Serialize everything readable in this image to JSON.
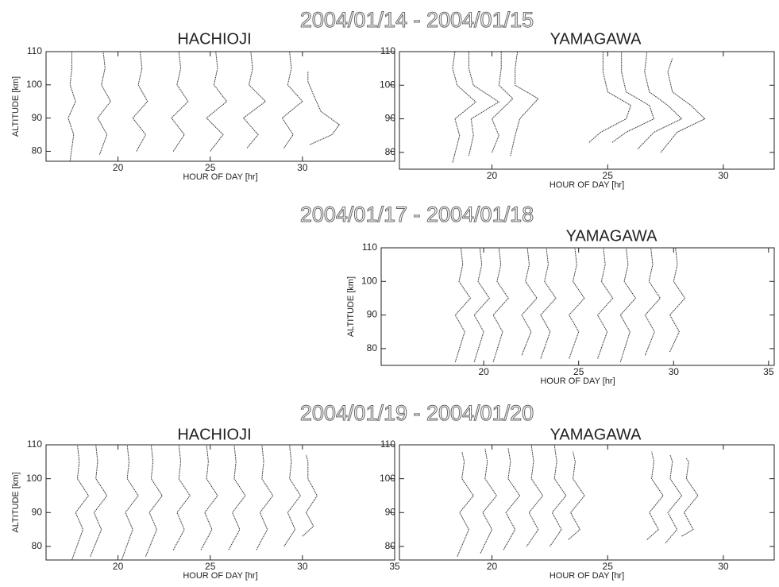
{
  "figure_titles": [
    "2004/01/14 - 2004/01/15",
    "2004/01/17 - 2004/01/18",
    "2004/01/19 - 2004/01/20"
  ],
  "chart_data": [
    {
      "type": "line",
      "title": "HACHIOJI",
      "xlabel": "HOUR OF DAY [hr]",
      "ylabel": "ALTITUDE [km]",
      "xlim": [
        16.1,
        35
      ],
      "ylim": [
        77,
        110
      ],
      "xticks": [
        20,
        25,
        30
      ],
      "yticks": [
        80,
        90,
        100,
        110
      ],
      "color": "#333333",
      "series": [
        {
          "x": [
            17.4,
            17.6,
            17.3,
            17.7,
            17.4,
            17.5,
            17.5
          ],
          "values": [
            77,
            85,
            90,
            95,
            100,
            105,
            110
          ]
        },
        {
          "x": [
            19.0,
            19.4,
            18.9,
            19.6,
            19.1,
            19.3,
            19.2
          ],
          "values": [
            79,
            85,
            90,
            95,
            100,
            105,
            110
          ]
        },
        {
          "x": [
            21.0,
            21.5,
            20.8,
            21.6,
            21.1,
            21.3,
            21.2
          ],
          "values": [
            80,
            85,
            90,
            95,
            100,
            105,
            110
          ]
        },
        {
          "x": [
            23.0,
            23.6,
            22.9,
            23.8,
            23.2,
            23.4,
            23.3
          ],
          "values": [
            80,
            85,
            90,
            95,
            100,
            105,
            110
          ]
        },
        {
          "x": [
            25.0,
            25.7,
            24.8,
            25.9,
            25.2,
            25.4,
            25.3
          ],
          "values": [
            80,
            85,
            90,
            95,
            100,
            105,
            110
          ]
        },
        {
          "x": [
            27.0,
            27.6,
            26.8,
            28.0,
            27.1,
            27.3,
            27.2
          ],
          "values": [
            81,
            85,
            90,
            95,
            100,
            105,
            110
          ]
        },
        {
          "x": [
            29.0,
            29.5,
            28.9,
            30.0,
            29.2,
            29.4,
            29.3
          ],
          "values": [
            81,
            85,
            90,
            95,
            100,
            105,
            110
          ]
        },
        {
          "x": [
            30.4,
            31.6,
            32.0,
            31.0,
            30.6,
            30.3,
            30.3
          ],
          "values": [
            82,
            85,
            88,
            92,
            97,
            101,
            104
          ]
        }
      ]
    },
    {
      "type": "line",
      "title": "YAMAGAWA",
      "xlabel": "HOUR OF DAY [hr]",
      "xlim": [
        16,
        32.2
      ],
      "ylim": [
        75,
        110
      ],
      "xticks": [
        20,
        25,
        30
      ],
      "yticks": [
        80,
        90,
        100,
        110
      ],
      "color": "#333333",
      "series": [
        {
          "x": [
            18.3,
            18.6,
            18.4,
            19.3,
            18.5,
            18.3,
            18.4
          ],
          "values": [
            77,
            85,
            90,
            95,
            100,
            105,
            110
          ]
        },
        {
          "x": [
            19.0,
            19.2,
            19.1,
            20.3,
            19.2,
            19.0,
            19.0
          ],
          "values": [
            79,
            85,
            90,
            95,
            100,
            105,
            110
          ]
        },
        {
          "x": [
            20.0,
            20.3,
            20.0,
            20.9,
            20.3,
            20.4,
            20.4
          ],
          "values": [
            80,
            85,
            90,
            96,
            100,
            105,
            110
          ]
        },
        {
          "x": [
            20.8,
            21.0,
            21.2,
            22.0,
            21.0,
            21.0,
            21.1
          ],
          "values": [
            79,
            85,
            90,
            96,
            100,
            105,
            110
          ]
        },
        {
          "x": [
            24.2,
            24.7,
            25.8,
            26.0,
            25.0,
            24.8,
            24.8
          ],
          "values": [
            83,
            86,
            90,
            94,
            98,
            104,
            110
          ]
        },
        {
          "x": [
            25.2,
            25.8,
            27.0,
            26.8,
            25.8,
            25.6,
            25.6
          ],
          "values": [
            83,
            86,
            90,
            94,
            98,
            104,
            110
          ]
        },
        {
          "x": [
            26.3,
            27.0,
            28.2,
            27.6,
            26.8,
            26.6,
            26.7
          ],
          "values": [
            81,
            86,
            90,
            94,
            98,
            104,
            110
          ]
        },
        {
          "x": [
            27.3,
            28.0,
            29.2,
            28.6,
            27.8,
            27.6,
            27.8
          ],
          "values": [
            80,
            86,
            90,
            94,
            98,
            104,
            108
          ]
        }
      ]
    },
    {
      "type": "line",
      "title": "YAMAGAWA",
      "xlabel": "HOUR OF DAY [hr]",
      "ylabel": "ALTITUDE [km]",
      "xlim": [
        14.6,
        35.3
      ],
      "ylim": [
        75,
        110
      ],
      "xticks": [
        20,
        25,
        30,
        35
      ],
      "yticks": [
        80,
        90,
        100,
        110
      ],
      "color": "#333333",
      "series": [
        {
          "x": [
            18.5,
            19.0,
            18.5,
            19.3,
            18.7,
            18.9,
            18.8
          ],
          "values": [
            76,
            85,
            90,
            95,
            100,
            105,
            110
          ]
        },
        {
          "x": [
            19.5,
            20.0,
            19.5,
            20.3,
            19.7,
            19.9,
            19.8
          ],
          "values": [
            76,
            85,
            90,
            95,
            100,
            105,
            110
          ]
        },
        {
          "x": [
            20.5,
            21.0,
            20.5,
            21.3,
            20.7,
            20.9,
            20.8
          ],
          "values": [
            76,
            85,
            90,
            95,
            100,
            105,
            110
          ]
        },
        {
          "x": [
            22.0,
            22.5,
            22.0,
            22.8,
            22.2,
            22.4,
            22.3
          ],
          "values": [
            78,
            85,
            90,
            95,
            100,
            105,
            110
          ]
        },
        {
          "x": [
            23.0,
            23.5,
            23.0,
            23.8,
            23.2,
            23.4,
            23.3
          ],
          "values": [
            77,
            85,
            90,
            95,
            100,
            105,
            110
          ]
        },
        {
          "x": [
            24.5,
            25.0,
            24.5,
            25.3,
            24.7,
            24.9,
            24.8
          ],
          "values": [
            77,
            85,
            90,
            95,
            100,
            105,
            110
          ]
        },
        {
          "x": [
            26.0,
            26.5,
            26.0,
            26.8,
            26.2,
            26.4,
            26.3
          ],
          "values": [
            77,
            85,
            90,
            95,
            100,
            105,
            110
          ]
        },
        {
          "x": [
            27.2,
            27.7,
            27.2,
            28.0,
            27.4,
            27.6,
            27.5
          ],
          "values": [
            76,
            85,
            90,
            95,
            100,
            105,
            110
          ]
        },
        {
          "x": [
            28.5,
            29.0,
            28.5,
            29.3,
            28.7,
            28.9,
            28.8
          ],
          "values": [
            78,
            85,
            90,
            95,
            100,
            105,
            110
          ]
        },
        {
          "x": [
            29.8,
            30.3,
            29.8,
            30.6,
            30.0,
            30.2,
            30.1
          ],
          "values": [
            79,
            85,
            90,
            95,
            100,
            105,
            110
          ]
        }
      ]
    },
    {
      "type": "line",
      "title": "HACHIOJI",
      "xlabel": "HOUR OF DAY [hr]",
      "ylabel": "ALTITUDE [km]",
      "xlim": [
        16.1,
        35
      ],
      "ylim": [
        76,
        110
      ],
      "xticks": [
        20,
        25,
        30,
        35
      ],
      "yticks": [
        80,
        90,
        100,
        110
      ],
      "color": "#333333",
      "series": [
        {
          "x": [
            17.5,
            18.1,
            17.7,
            18.4,
            17.8,
            17.9,
            17.8
          ],
          "values": [
            76,
            85,
            90,
            95,
            100,
            105,
            110
          ]
        },
        {
          "x": [
            18.5,
            19.1,
            18.7,
            19.4,
            18.8,
            18.9,
            18.8
          ],
          "values": [
            77,
            85,
            90,
            95,
            100,
            105,
            110
          ]
        },
        {
          "x": [
            20.2,
            20.8,
            20.4,
            21.1,
            20.5,
            20.6,
            20.5
          ],
          "values": [
            76,
            85,
            90,
            95,
            100,
            105,
            110
          ]
        },
        {
          "x": [
            21.5,
            22.1,
            21.7,
            22.4,
            21.8,
            21.9,
            21.8
          ],
          "values": [
            77,
            85,
            90,
            95,
            100,
            105,
            110
          ]
        },
        {
          "x": [
            23.0,
            23.6,
            23.2,
            23.9,
            23.3,
            23.4,
            23.3
          ],
          "values": [
            79,
            85,
            90,
            95,
            100,
            105,
            110
          ]
        },
        {
          "x": [
            24.5,
            25.1,
            24.7,
            25.4,
            24.8,
            24.9,
            24.8
          ],
          "values": [
            79,
            85,
            90,
            95,
            100,
            105,
            110
          ]
        },
        {
          "x": [
            26.0,
            26.6,
            26.2,
            26.9,
            26.3,
            26.4,
            26.3
          ],
          "values": [
            79,
            85,
            90,
            95,
            100,
            105,
            110
          ]
        },
        {
          "x": [
            27.5,
            28.1,
            27.7,
            28.4,
            27.8,
            27.9,
            27.8
          ],
          "values": [
            79,
            85,
            90,
            95,
            100,
            105,
            110
          ]
        },
        {
          "x": [
            29.0,
            29.6,
            29.2,
            29.9,
            29.3,
            29.4,
            29.3
          ],
          "values": [
            80,
            85,
            90,
            95,
            100,
            105,
            110
          ]
        },
        {
          "x": [
            30.0,
            30.6,
            30.2,
            30.8,
            30.3,
            30.3,
            30.2
          ],
          "values": [
            83,
            86,
            90,
            95,
            100,
            105,
            107
          ]
        }
      ]
    },
    {
      "type": "line",
      "title": "YAMAGAWA",
      "xlabel": "HOUR OF DAY [hr]",
      "xlim": [
        16,
        32.2
      ],
      "ylim": [
        76,
        110
      ],
      "xticks": [
        20,
        25,
        30
      ],
      "yticks": [
        80,
        90,
        100,
        110
      ],
      "color": "#333333",
      "series": [
        {
          "x": [
            18.5,
            19.0,
            18.6,
            19.2,
            18.7,
            18.8,
            18.7
          ],
          "values": [
            77,
            85,
            90,
            95,
            100,
            105,
            108
          ]
        },
        {
          "x": [
            19.5,
            20.0,
            19.6,
            20.2,
            19.7,
            19.8,
            19.7
          ],
          "values": [
            78,
            85,
            90,
            95,
            100,
            105,
            109
          ]
        },
        {
          "x": [
            20.5,
            21.0,
            20.6,
            21.2,
            20.7,
            20.8,
            20.7
          ],
          "values": [
            79,
            85,
            90,
            95,
            100,
            105,
            109
          ]
        },
        {
          "x": [
            21.5,
            22.0,
            21.6,
            22.2,
            21.7,
            21.8,
            21.7
          ],
          "values": [
            80,
            85,
            90,
            95,
            100,
            105,
            110
          ]
        },
        {
          "x": [
            22.5,
            23.0,
            22.6,
            23.2,
            22.7,
            22.8,
            22.7
          ],
          "values": [
            80,
            85,
            90,
            95,
            100,
            105,
            110
          ]
        },
        {
          "x": [
            23.3,
            23.8,
            23.4,
            24.0,
            23.5,
            23.6,
            23.5
          ],
          "values": [
            82,
            85,
            90,
            95,
            100,
            105,
            108
          ]
        },
        {
          "x": [
            26.7,
            27.2,
            26.8,
            27.4,
            26.9,
            27.0,
            26.9
          ],
          "values": [
            82,
            85,
            90,
            95,
            100,
            105,
            108
          ]
        },
        {
          "x": [
            27.5,
            28.0,
            27.6,
            28.2,
            27.7,
            27.8,
            27.7
          ],
          "values": [
            81,
            85,
            90,
            95,
            100,
            105,
            107
          ]
        },
        {
          "x": [
            28.2,
            28.7,
            28.3,
            28.9,
            28.4,
            28.5,
            28.4
          ],
          "values": [
            83,
            85,
            90,
            95,
            100,
            105,
            106
          ]
        }
      ]
    }
  ]
}
